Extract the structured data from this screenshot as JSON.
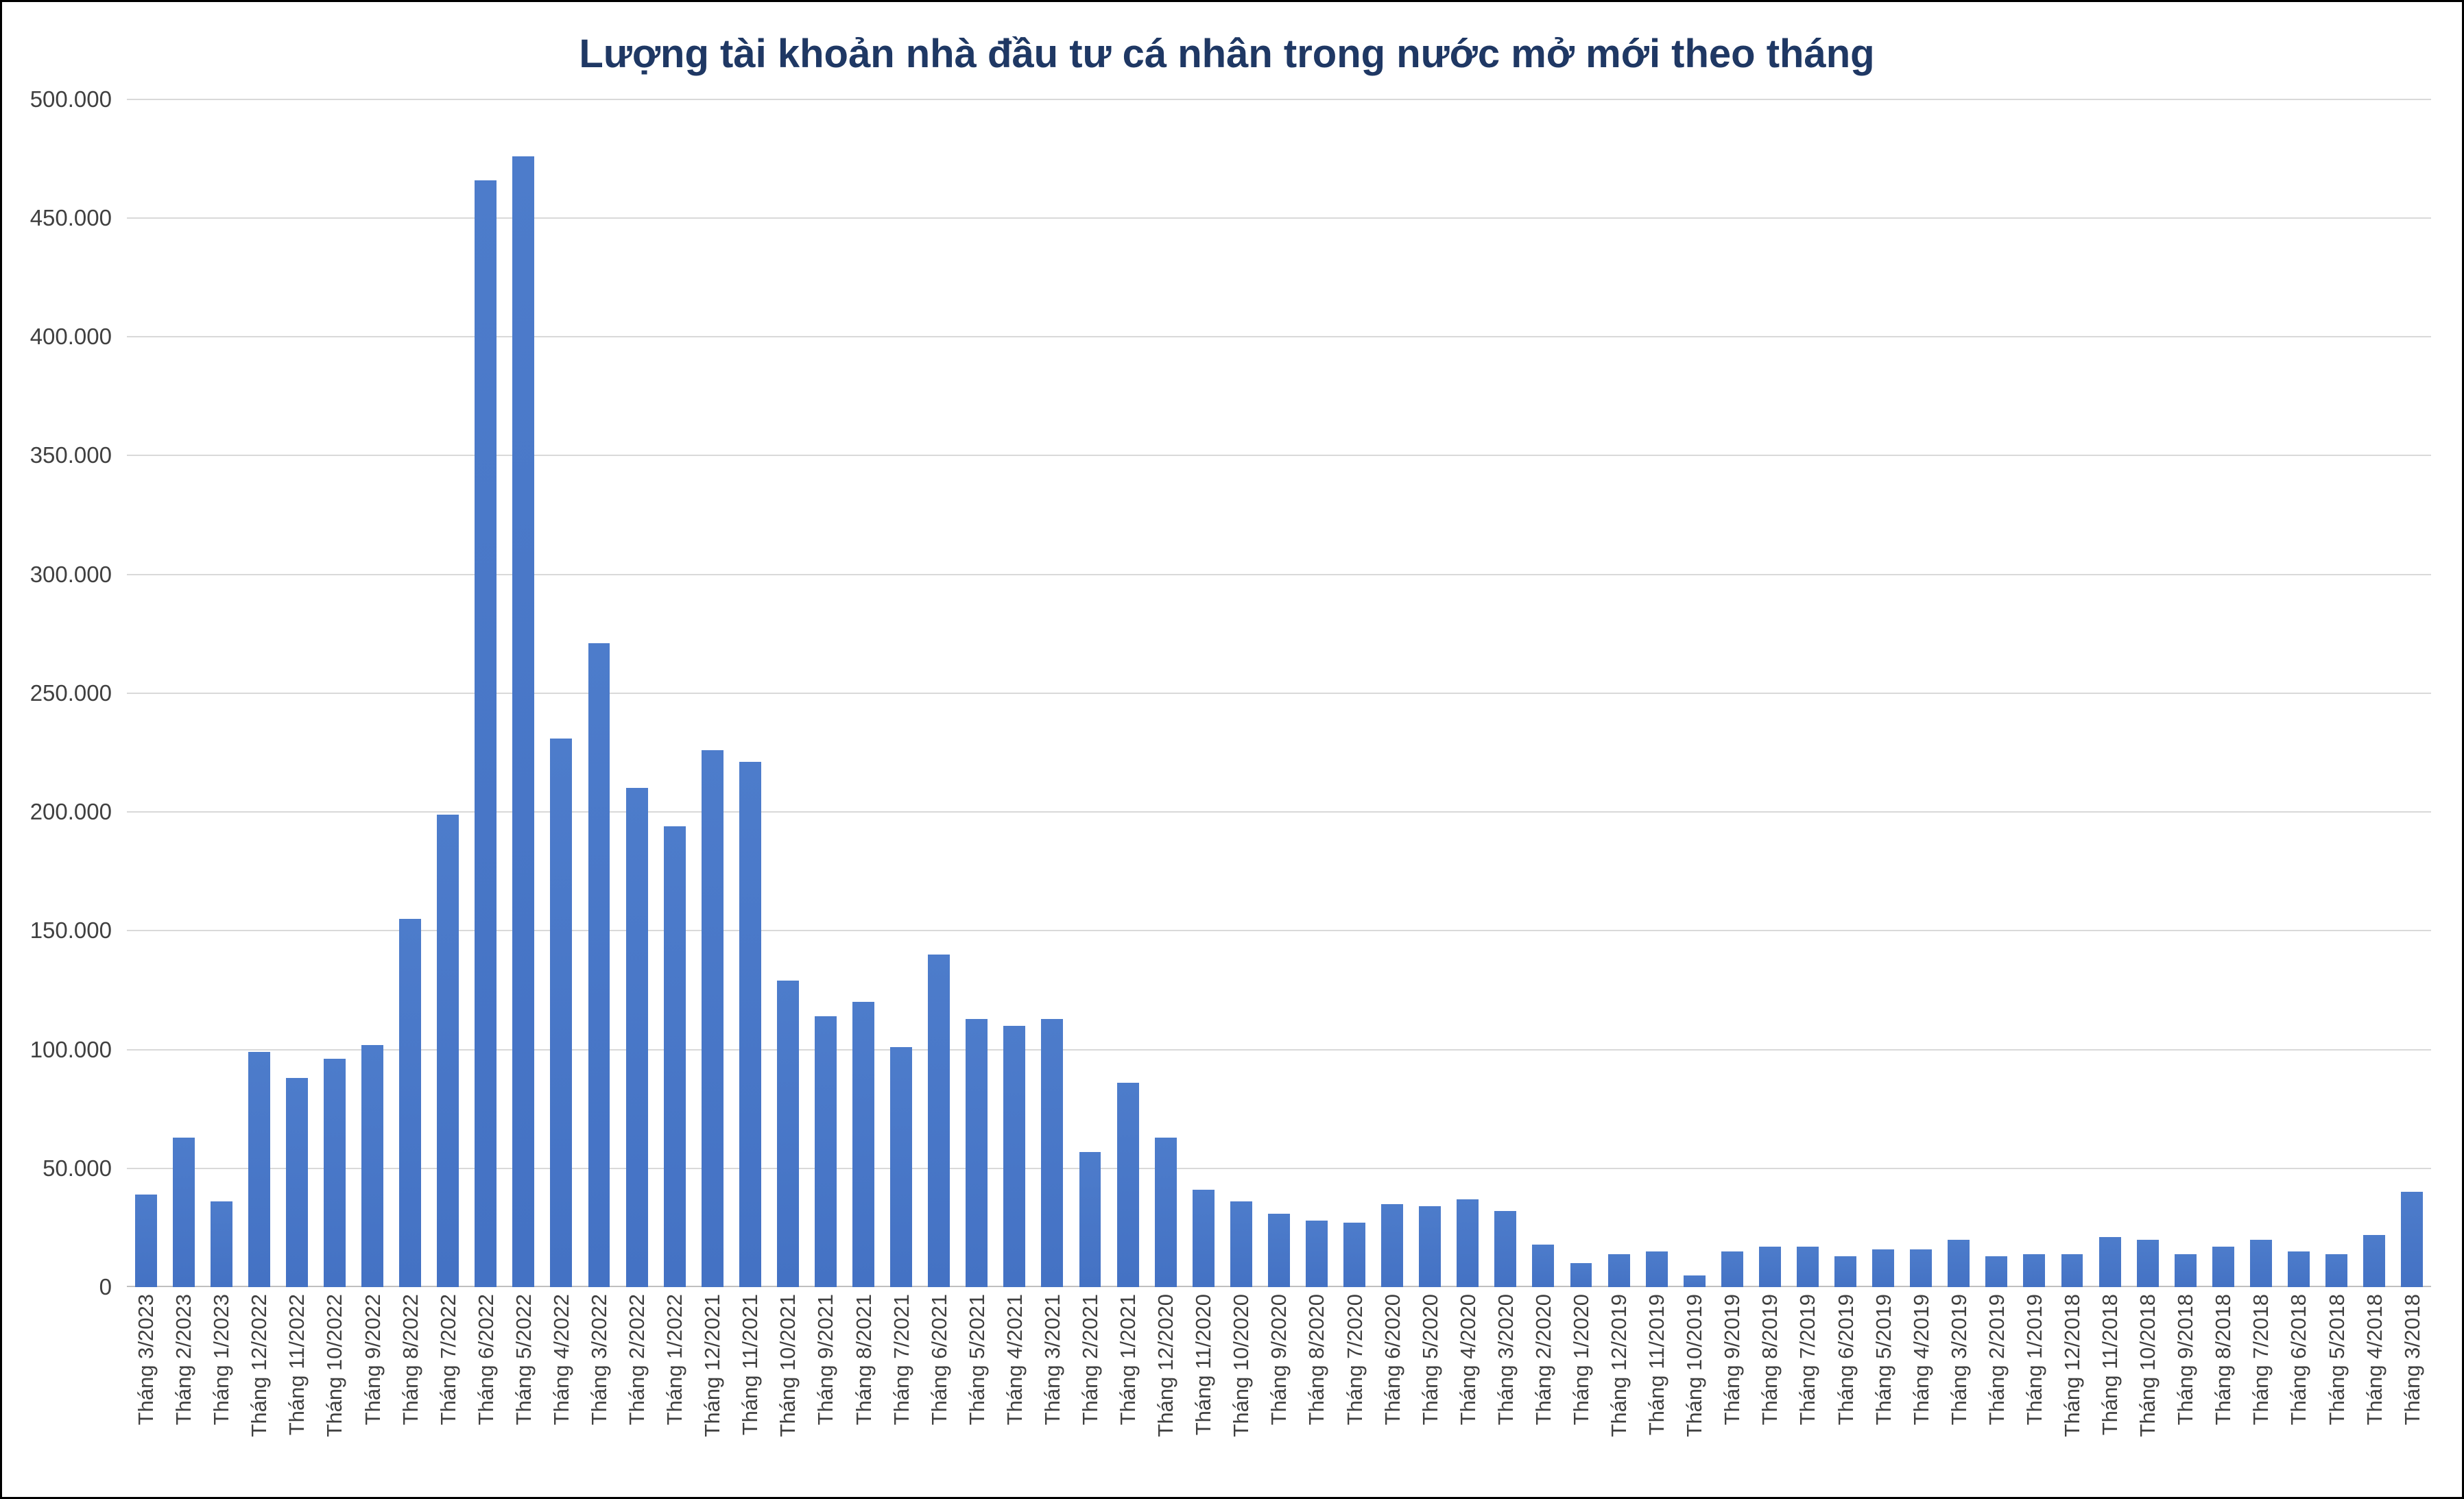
{
  "chart_data": {
    "type": "bar",
    "title": "Lượng tài khoản nhà đầu tư cá nhân trong nước mở mới theo tháng",
    "xlabel": "",
    "ylabel": "",
    "ylim": [
      0,
      500000
    ],
    "y_tick_step": 50000,
    "y_tick_labels": [
      "0",
      "50.000",
      "100.000",
      "150.000",
      "200.000",
      "250.000",
      "300.000",
      "350.000",
      "400.000",
      "450.000",
      "500.000"
    ],
    "grid": true,
    "legend": false,
    "bar_color": "#4472C4",
    "title_color": "#1F3864",
    "gridline_color": "#d9d9d9",
    "categories": [
      "Tháng 3/2023",
      "Tháng 2/2023",
      "Tháng 1/2023",
      "Tháng 12/2022",
      "Tháng 11/2022",
      "Tháng 10/2022",
      "Tháng 9/2022",
      "Tháng 8/2022",
      "Tháng 7/2022",
      "Tháng 6/2022",
      "Tháng 5/2022",
      "Tháng 4/2022",
      "Tháng 3/2022",
      "Tháng 2/2022",
      "Tháng 1/2022",
      "Tháng 12/2021",
      "Tháng 11/2021",
      "Tháng 10/2021",
      "Tháng 9/2021",
      "Tháng 8/2021",
      "Tháng 7/2021",
      "Tháng 6/2021",
      "Tháng 5/2021",
      "Tháng 4/2021",
      "Tháng 3/2021",
      "Tháng 2/2021",
      "Tháng 1/2021",
      "Tháng 12/2020",
      "Tháng 11/2020",
      "Tháng 10/2020",
      "Tháng 9/2020",
      "Tháng 8/2020",
      "Tháng 7/2020",
      "Tháng 6/2020",
      "Tháng 5/2020",
      "Tháng 4/2020",
      "Tháng 3/2020",
      "Tháng 2/2020",
      "Tháng 1/2020",
      "Tháng 12/2019",
      "Tháng 11/2019",
      "Tháng 10/2019",
      "Tháng 9/2019",
      "Tháng 8/2019",
      "Tháng 7/2019",
      "Tháng 6/2019",
      "Tháng 5/2019",
      "Tháng 4/2019",
      "Tháng 3/2019",
      "Tháng 2/2019",
      "Tháng 1/2019",
      "Tháng 12/2018",
      "Tháng 11/2018",
      "Tháng 10/2018",
      "Tháng 9/2018",
      "Tháng 8/2018",
      "Tháng 7/2018",
      "Tháng 6/2018",
      "Tháng 5/2018",
      "Tháng 4/2018",
      "Tháng 3/2018"
    ],
    "values": [
      39000,
      63000,
      36000,
      99000,
      88000,
      96000,
      102000,
      155000,
      199000,
      466000,
      476000,
      231000,
      271000,
      210000,
      194000,
      226000,
      221000,
      129000,
      114000,
      120000,
      101000,
      140000,
      113000,
      110000,
      113000,
      57000,
      86000,
      63000,
      41000,
      36000,
      31000,
      28000,
      27000,
      35000,
      34000,
      37000,
      32000,
      18000,
      10000,
      14000,
      15000,
      5000,
      15000,
      17000,
      17000,
      13000,
      16000,
      16000,
      20000,
      13000,
      14000,
      14000,
      21000,
      20000,
      14000,
      17000,
      20000,
      15000,
      14000,
      22000,
      40000
    ]
  }
}
